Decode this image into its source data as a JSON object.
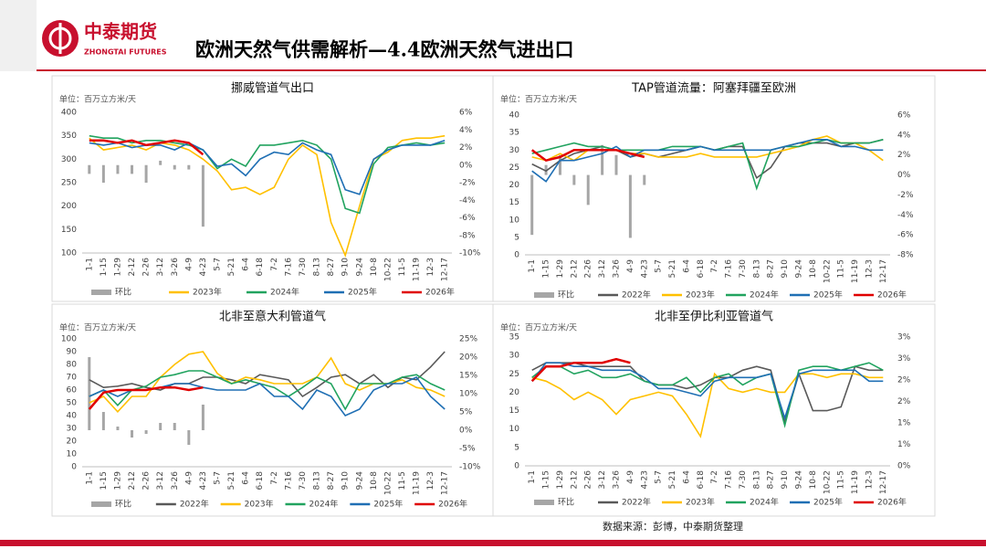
{
  "header": {
    "logo_name": "中泰期货",
    "logo_sub": "ZHONGTAI FUTURES",
    "title": "欧洲天然气供需解析—4.4欧洲天然气进出口"
  },
  "source": "数据来源：彭博，中泰期货整理",
  "chart_data": [
    {
      "type": "line",
      "title": "挪威管道气出口",
      "y_label": "单位：百万立方米/天",
      "categories": [
        "1-1",
        "1-15",
        "1-29",
        "2-12",
        "2-26",
        "3-12",
        "3-26",
        "4-9",
        "4-23",
        "5-7",
        "5-21",
        "6-4",
        "6-18",
        "7-2",
        "7-16",
        "7-30",
        "8-13",
        "8-27",
        "9-10",
        "9-24",
        "10-8",
        "10-22",
        "11-5",
        "11-19",
        "12-3",
        "12-17"
      ],
      "ylim": [
        100,
        400
      ],
      "yticks": [
        100,
        150,
        200,
        250,
        300,
        350,
        400
      ],
      "y2lim": [
        -10,
        6
      ],
      "y2ticks": [
        {
          "value": -10,
          "label": "-10%"
        },
        {
          "value": -8,
          "label": "-8%"
        },
        {
          "value": -6,
          "label": "-6%"
        },
        {
          "value": -4,
          "label": "-4%"
        },
        {
          "value": -2,
          "label": "-2%"
        },
        {
          "value": 0,
          "label": "0%"
        },
        {
          "value": 2,
          "label": "2%"
        },
        {
          "value": 4,
          "label": "4%"
        },
        {
          "value": 6,
          "label": "6%"
        }
      ],
      "grid": false,
      "legend": "bottom",
      "series": [
        {
          "name": "环比",
          "type": "bar",
          "axis": "y2",
          "color": "#a6a6a6",
          "values": [
            -1,
            -2,
            -1,
            -1,
            -2,
            0.5,
            -0.5,
            -0.5,
            -7,
            null,
            null,
            null,
            null,
            null,
            null,
            null,
            null,
            null,
            null,
            null,
            null,
            null,
            null,
            null,
            null,
            null
          ]
        },
        {
          "name": "2023年",
          "color": "#ffc000",
          "values": [
            345,
            320,
            325,
            330,
            320,
            335,
            330,
            320,
            300,
            275,
            235,
            240,
            225,
            240,
            300,
            330,
            310,
            165,
            95,
            200,
            300,
            315,
            340,
            345,
            345,
            350
          ]
        },
        {
          "name": "2024年",
          "color": "#21a35f",
          "values": [
            350,
            345,
            345,
            335,
            340,
            340,
            335,
            330,
            320,
            280,
            300,
            285,
            330,
            330,
            335,
            340,
            330,
            300,
            195,
            185,
            290,
            325,
            330,
            335,
            330,
            335
          ]
        },
        {
          "name": "2025年",
          "color": "#1f6fb4",
          "values": [
            335,
            330,
            335,
            325,
            330,
            330,
            320,
            335,
            320,
            285,
            290,
            265,
            300,
            315,
            310,
            335,
            320,
            310,
            235,
            225,
            300,
            320,
            330,
            330,
            330,
            340
          ]
        },
        {
          "name": "2026年",
          "color": "#e00000",
          "values": [
            340,
            340,
            335,
            340,
            330,
            335,
            340,
            335,
            310,
            null,
            null,
            null,
            null,
            null,
            null,
            null,
            null,
            null,
            null,
            null,
            null,
            null,
            null,
            null,
            null,
            null
          ]
        }
      ]
    },
    {
      "type": "line",
      "title": "TAP管道流量：阿塞拜疆至欧洲",
      "y_label": "单位：百万立方米/天",
      "categories": [
        "1-1",
        "1-15",
        "1-29",
        "2-12",
        "2-26",
        "3-12",
        "3-26",
        "4-9",
        "4-23",
        "5-7",
        "5-21",
        "6-4",
        "6-18",
        "7-2",
        "7-16",
        "7-30",
        "8-13",
        "8-27",
        "9-10",
        "9-24",
        "10-8",
        "10-22",
        "11-5",
        "11-19",
        "12-3",
        "12-17"
      ],
      "ylim": [
        0,
        40
      ],
      "yticks": [
        0,
        5,
        10,
        15,
        20,
        25,
        30,
        35,
        40
      ],
      "y2lim": [
        -8,
        6
      ],
      "y2ticks": [
        {
          "value": -8,
          "label": "-8%"
        },
        {
          "value": -6,
          "label": "-6%"
        },
        {
          "value": -4,
          "label": "-4%"
        },
        {
          "value": -2,
          "label": "-2%"
        },
        {
          "value": 0,
          "label": "0%"
        },
        {
          "value": 2,
          "label": "2%"
        },
        {
          "value": 4,
          "label": "4%"
        },
        {
          "value": 6,
          "label": "6%"
        }
      ],
      "grid": false,
      "legend": "bottom",
      "series": [
        {
          "name": "环比",
          "type": "bar",
          "axis": "y2",
          "color": "#a6a6a6",
          "values": [
            -6,
            1,
            2,
            -1,
            -3,
            3,
            2,
            -6.3,
            -1,
            null,
            null,
            null,
            null,
            null,
            null,
            null,
            null,
            null,
            null,
            null,
            null,
            null,
            null,
            null,
            null,
            null
          ]
        },
        {
          "name": "2022年",
          "color": "#595959",
          "values": [
            26,
            24,
            27,
            29,
            30,
            31,
            30,
            28,
            29,
            28,
            29,
            30,
            31,
            30,
            31,
            31,
            22,
            25,
            31,
            32,
            32,
            32,
            31,
            32,
            32,
            33
          ]
        },
        {
          "name": "2023年",
          "color": "#ffc000",
          "values": [
            28,
            27,
            29,
            27,
            30,
            30,
            30,
            29,
            29,
            28,
            28,
            28,
            29,
            28,
            28,
            28,
            28,
            29,
            30,
            31,
            33,
            34,
            32,
            32,
            30,
            27
          ]
        },
        {
          "name": "2024年",
          "color": "#21a35f",
          "values": [
            29,
            30,
            31,
            32,
            31,
            31,
            30,
            30,
            30,
            30,
            31,
            31,
            31,
            30,
            31,
            32,
            19,
            30,
            31,
            31,
            32,
            33,
            32,
            32,
            32,
            33
          ]
        },
        {
          "name": "2025年",
          "color": "#1f6fb4",
          "values": [
            24,
            21,
            27,
            27,
            28,
            29,
            31,
            28,
            30,
            30,
            30,
            30,
            31,
            30,
            30,
            30,
            30,
            30,
            31,
            32,
            33,
            33,
            31,
            31,
            30,
            30
          ]
        },
        {
          "name": "2026年",
          "color": "#e00000",
          "values": [
            30,
            27,
            28,
            30,
            30,
            30,
            30,
            29,
            28,
            null,
            null,
            null,
            null,
            null,
            null,
            null,
            null,
            null,
            null,
            null,
            null,
            null,
            null,
            null,
            null,
            null
          ]
        }
      ]
    },
    {
      "type": "line",
      "title": "北非至意大利管道气",
      "y_label": "单位：百万立方米/天",
      "categories": [
        "1-1",
        "1-15",
        "1-29",
        "2-12",
        "2-26",
        "3-12",
        "3-26",
        "4-9",
        "4-23",
        "5-7",
        "5-21",
        "6-4",
        "6-18",
        "7-2",
        "7-16",
        "7-30",
        "8-13",
        "8-27",
        "9-10",
        "9-24",
        "10-8",
        "10-22",
        "11-5",
        "11-19",
        "12-3",
        "12-17"
      ],
      "ylim": [
        0,
        100
      ],
      "yticks": [
        0,
        10,
        20,
        30,
        40,
        50,
        60,
        70,
        80,
        90,
        100
      ],
      "y2lim": [
        -10,
        25
      ],
      "y2ticks": [
        {
          "value": -10,
          "label": "-10%"
        },
        {
          "value": -5,
          "label": "-5%"
        },
        {
          "value": 0,
          "label": "0%"
        },
        {
          "value": 5,
          "label": "5%"
        },
        {
          "value": 10,
          "label": "10%"
        },
        {
          "value": 15,
          "label": "15%"
        },
        {
          "value": 20,
          "label": "20%"
        },
        {
          "value": 25,
          "label": "25%"
        }
      ],
      "grid": false,
      "legend": "bottom",
      "series": [
        {
          "name": "环比",
          "type": "bar",
          "axis": "y2",
          "color": "#a6a6a6",
          "values": [
            20,
            5,
            1,
            -2,
            -1,
            2,
            2,
            -4,
            7,
            null,
            null,
            null,
            null,
            null,
            null,
            null,
            null,
            null,
            null,
            null,
            null,
            null,
            null,
            null,
            null,
            null
          ]
        },
        {
          "name": "2022年",
          "color": "#595959",
          "values": [
            68,
            62,
            63,
            65,
            62,
            60,
            65,
            65,
            70,
            70,
            68,
            65,
            72,
            70,
            68,
            55,
            62,
            70,
            72,
            65,
            72,
            62,
            70,
            68,
            78,
            90
          ]
        },
        {
          "name": "2023年",
          "color": "#ffc000",
          "values": [
            50,
            55,
            43,
            55,
            55,
            70,
            80,
            88,
            90,
            73,
            65,
            70,
            68,
            65,
            65,
            65,
            70,
            85,
            65,
            60,
            65,
            65,
            68,
            62,
            60,
            55
          ]
        },
        {
          "name": "2024年",
          "color": "#21a35f",
          "values": [
            55,
            60,
            48,
            60,
            63,
            70,
            72,
            75,
            75,
            70,
            65,
            68,
            65,
            62,
            55,
            62,
            70,
            65,
            45,
            65,
            65,
            65,
            70,
            72,
            65,
            60
          ]
        },
        {
          "name": "2025年",
          "color": "#1f6fb4",
          "values": [
            55,
            60,
            55,
            60,
            60,
            62,
            65,
            65,
            62,
            60,
            60,
            60,
            65,
            55,
            55,
            45,
            60,
            55,
            40,
            45,
            60,
            65,
            65,
            70,
            55,
            45
          ]
        },
        {
          "name": "2026年",
          "color": "#e00000",
          "values": [
            45,
            58,
            60,
            60,
            60,
            62,
            62,
            60,
            62,
            null,
            null,
            null,
            null,
            null,
            null,
            null,
            null,
            null,
            null,
            null,
            null,
            null,
            null,
            null,
            null,
            null
          ]
        }
      ]
    },
    {
      "type": "line",
      "title": "北非至伊比利亚管道气",
      "y_label": "单位：百万立方米/天",
      "categories": [
        "1-1",
        "1-15",
        "1-29",
        "2-12",
        "2-26",
        "3-12",
        "3-26",
        "4-9",
        "4-23",
        "5-7",
        "5-21",
        "6-4",
        "6-18",
        "7-2",
        "7-16",
        "7-30",
        "8-13",
        "8-27",
        "9-10",
        "9-24",
        "10-8",
        "10-22",
        "11-5",
        "11-19",
        "12-3",
        "12-17"
      ],
      "ylim": [
        0,
        35
      ],
      "yticks": [
        0,
        5,
        10,
        15,
        20,
        25,
        30,
        35
      ],
      "y2lim": [
        0,
        3
      ],
      "y2ticks": [
        {
          "value": 0,
          "label": "0%"
        },
        {
          "value": 0.5,
          "label": "1%"
        },
        {
          "value": 1,
          "label": "1%"
        },
        {
          "value": 1.5,
          "label": "2%"
        },
        {
          "value": 2,
          "label": "2%"
        },
        {
          "value": 2.5,
          "label": "3%"
        },
        {
          "value": 3,
          "label": "3%"
        }
      ],
      "grid": false,
      "legend": "bottom",
      "series": [
        {
          "name": "环比",
          "type": "bar",
          "axis": "y2",
          "color": "#a6a6a6",
          "values": [
            null,
            null,
            null,
            null,
            null,
            null,
            null,
            null,
            null,
            null,
            null,
            null,
            null,
            null,
            null,
            null,
            null,
            null,
            null,
            null,
            null,
            null,
            null,
            null,
            null,
            null
          ]
        },
        {
          "name": "2022年",
          "color": "#595959",
          "values": [
            26,
            28,
            28,
            28,
            27,
            27,
            27,
            27,
            23,
            22,
            22,
            21,
            22,
            24,
            24,
            26,
            27,
            26,
            12,
            25,
            15,
            15,
            16,
            27,
            26,
            26
          ]
        },
        {
          "name": "2023年",
          "color": "#ffc000",
          "values": [
            24,
            23,
            21,
            18,
            20,
            18,
            14,
            18,
            19,
            20,
            19,
            14,
            8,
            25,
            21,
            20,
            21,
            20,
            20,
            25,
            25,
            24,
            25,
            25,
            24,
            24
          ]
        },
        {
          "name": "2024年",
          "color": "#21a35f",
          "values": [
            24,
            27,
            27,
            25,
            26,
            24,
            24,
            25,
            23,
            22,
            22,
            24,
            20,
            24,
            25,
            22,
            24,
            25,
            11,
            26,
            27,
            27,
            26,
            27,
            28,
            26
          ]
        },
        {
          "name": "2025年",
          "color": "#1f6fb4",
          "values": [
            23,
            28,
            28,
            27,
            27,
            26,
            26,
            26,
            24,
            21,
            21,
            20,
            19,
            23,
            24,
            24,
            24,
            25,
            13,
            25,
            26,
            26,
            26,
            26,
            23,
            23
          ]
        },
        {
          "name": "2026年",
          "color": "#e00000",
          "values": [
            23,
            27,
            27,
            28,
            28,
            28,
            29,
            28,
            null,
            null,
            null,
            null,
            null,
            null,
            null,
            null,
            null,
            null,
            null,
            null,
            null,
            null,
            null,
            null,
            null,
            null
          ]
        }
      ]
    }
  ]
}
